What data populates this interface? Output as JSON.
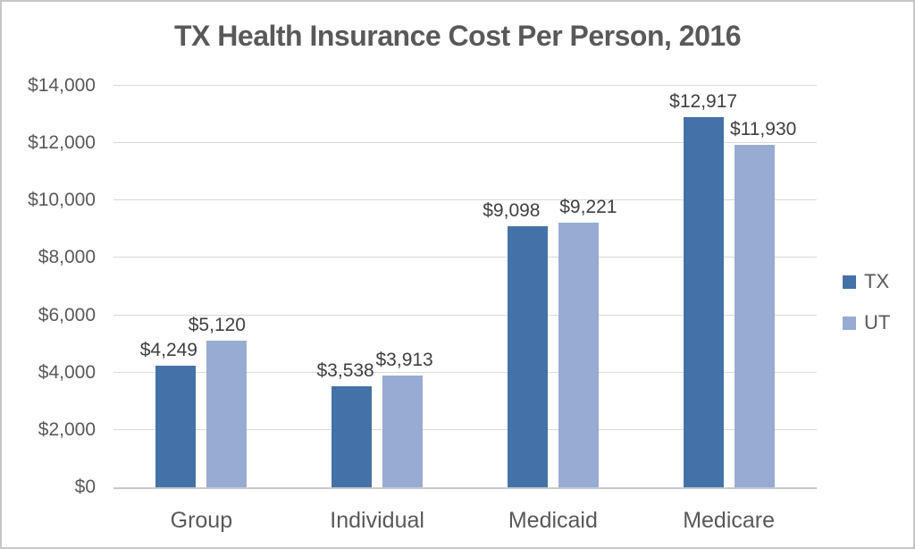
{
  "chart_data": {
    "type": "bar",
    "title": "TX Health Insurance Cost Per Person, 2016",
    "categories": [
      "Group",
      "Individual",
      "Medicaid",
      "Medicare"
    ],
    "series": [
      {
        "name": "TX",
        "color": "#4472a8",
        "values": [
          4249,
          3538,
          9098,
          12917
        ],
        "labels": [
          "$4,249",
          "$3,538",
          "$9,098",
          "$12,917"
        ]
      },
      {
        "name": "UT",
        "color": "#97abd3",
        "values": [
          5120,
          3913,
          9221,
          11930
        ],
        "labels": [
          "$5,120",
          "$3,913",
          "$9,221",
          "$11,930"
        ]
      }
    ],
    "xlabel": "",
    "ylabel": "",
    "ylim": [
      0,
      14000
    ],
    "ytick_step": 2000,
    "yticks": [
      "$0",
      "$2,000",
      "$4,000",
      "$6,000",
      "$8,000",
      "$10,000",
      "$12,000",
      "$14,000"
    ],
    "grid": true,
    "legend_position": "right"
  },
  "colors": {
    "tx_bar": "#4472a8",
    "ut_bar": "#97abd3",
    "gridline": "#d9d9d9",
    "axis_line": "#c9c9c9",
    "axis_text": "#595959",
    "data_label_text": "#404040",
    "title_text": "#595959",
    "frame_border": "#c6c6c6",
    "background": "#ffffff"
  }
}
